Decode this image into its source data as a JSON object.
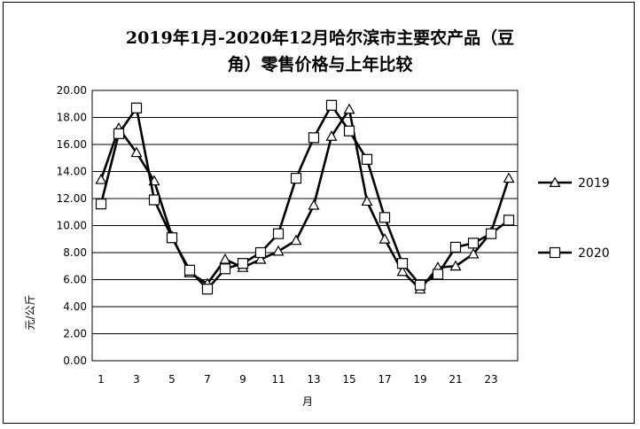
{
  "chart_data": {
    "type": "line",
    "title_line1": "2019年1月-2020年12月哈尔滨市主要农产品（豆",
    "title_line2": "角）零售价格与上年比较",
    "xlabel": "月",
    "ylabel": "元/公斤",
    "ylim": [
      0,
      20
    ],
    "yticks": [
      "0.00",
      "2.00",
      "4.00",
      "6.00",
      "8.00",
      "10.00",
      "12.00",
      "14.00",
      "16.00",
      "18.00",
      "20.00"
    ],
    "xticks": [
      "1",
      "3",
      "5",
      "7",
      "9",
      "11",
      "13",
      "15",
      "17",
      "19",
      "21",
      "23"
    ],
    "x": [
      1,
      2,
      3,
      4,
      5,
      6,
      7,
      8,
      9,
      10,
      11,
      12,
      13,
      14,
      15,
      16,
      17,
      18,
      19,
      20,
      21,
      22,
      23,
      24
    ],
    "series": [
      {
        "name": "2019",
        "marker": "triangle",
        "values": [
          13.4,
          17.2,
          15.4,
          13.3,
          9.2,
          6.5,
          5.7,
          7.5,
          6.9,
          7.5,
          8.1,
          8.9,
          11.5,
          16.6,
          18.6,
          11.8,
          9.0,
          6.6,
          5.3,
          6.9,
          7.0,
          7.9,
          9.5,
          13.5
        ]
      },
      {
        "name": "2020",
        "marker": "square",
        "values": [
          11.6,
          16.8,
          18.7,
          11.9,
          9.1,
          6.7,
          5.3,
          6.8,
          7.2,
          8.0,
          9.4,
          13.5,
          16.5,
          18.9,
          17.0,
          14.9,
          10.6,
          7.2,
          5.6,
          6.4,
          8.4,
          8.7,
          9.4,
          10.4
        ]
      }
    ],
    "grid": true,
    "legend": "right",
    "line_color": "#000000"
  }
}
